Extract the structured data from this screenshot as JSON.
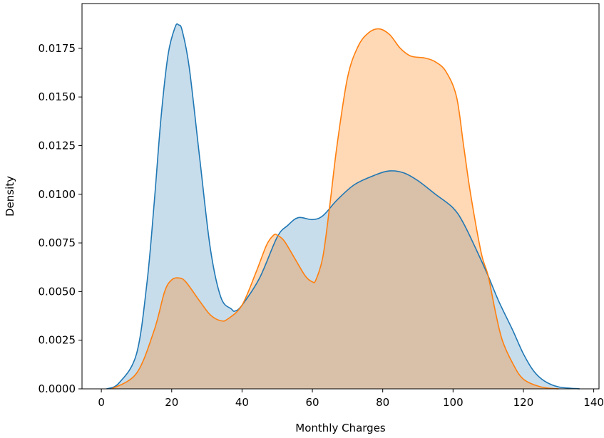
{
  "chart_data": {
    "type": "area",
    "xlabel": "Monthly Charges",
    "ylabel": "Density",
    "xlim": [
      -5.5,
      141.5
    ],
    "ylim": [
      0,
      0.0198
    ],
    "xticks": [
      0,
      20,
      40,
      60,
      80,
      100,
      120,
      140
    ],
    "yticks": [
      0.0,
      0.0025,
      0.005,
      0.0075,
      0.01,
      0.0125,
      0.015,
      0.0175
    ],
    "ytick_labels": [
      "0.0000",
      "0.0025",
      "0.0050",
      "0.0075",
      "0.0100",
      "0.0125",
      "0.0150",
      "0.0175"
    ],
    "grid": false,
    "series": [
      {
        "color": "#1f77b4",
        "fill_opacity": 0.25,
        "points": [
          [
            1.5,
            0.0
          ],
          [
            5,
            0.0003
          ],
          [
            10,
            0.0018
          ],
          [
            13,
            0.0055
          ],
          [
            15,
            0.0095
          ],
          [
            17,
            0.014
          ],
          [
            19,
            0.0172
          ],
          [
            21,
            0.0186
          ],
          [
            22,
            0.0187
          ],
          [
            23,
            0.0184
          ],
          [
            25,
            0.0165
          ],
          [
            28,
            0.0118
          ],
          [
            31,
            0.0072
          ],
          [
            34,
            0.0047
          ],
          [
            37,
            0.0041
          ],
          [
            38,
            0.004
          ],
          [
            40,
            0.0043
          ],
          [
            45,
            0.0057
          ],
          [
            50,
            0.0078
          ],
          [
            53,
            0.0084
          ],
          [
            56,
            0.0088
          ],
          [
            60,
            0.0087
          ],
          [
            63,
            0.0089
          ],
          [
            67,
            0.0097
          ],
          [
            72,
            0.0105
          ],
          [
            78,
            0.011
          ],
          [
            82,
            0.0112
          ],
          [
            86,
            0.0111
          ],
          [
            90,
            0.0107
          ],
          [
            95,
            0.01
          ],
          [
            100,
            0.0093
          ],
          [
            103,
            0.0085
          ],
          [
            107,
            0.007
          ],
          [
            110,
            0.0058
          ],
          [
            113,
            0.0045
          ],
          [
            117,
            0.003
          ],
          [
            120,
            0.0018
          ],
          [
            123,
            0.0009
          ],
          [
            126,
            0.0004
          ],
          [
            130,
            0.0001
          ],
          [
            136,
            0.0
          ]
        ]
      },
      {
        "color": "#ff7f0e",
        "fill_opacity": 0.3,
        "points": [
          [
            3,
            0.0
          ],
          [
            10,
            0.0008
          ],
          [
            15,
            0.003
          ],
          [
            18,
            0.005
          ],
          [
            20,
            0.0056
          ],
          [
            22,
            0.0057
          ],
          [
            24,
            0.0055
          ],
          [
            28,
            0.0045
          ],
          [
            31,
            0.0038
          ],
          [
            34,
            0.0035
          ],
          [
            36,
            0.0036
          ],
          [
            40,
            0.0043
          ],
          [
            44,
            0.006
          ],
          [
            47,
            0.0074
          ],
          [
            49,
            0.0079
          ],
          [
            50,
            0.0079
          ],
          [
            52,
            0.0076
          ],
          [
            55,
            0.0067
          ],
          [
            58,
            0.0058
          ],
          [
            60,
            0.0055
          ],
          [
            61,
            0.0056
          ],
          [
            63,
            0.0068
          ],
          [
            65,
            0.0095
          ],
          [
            67,
            0.0125
          ],
          [
            70,
            0.016
          ],
          [
            73,
            0.0176
          ],
          [
            76,
            0.0183
          ],
          [
            79,
            0.0185
          ],
          [
            82,
            0.0182
          ],
          [
            85,
            0.0175
          ],
          [
            88,
            0.0171
          ],
          [
            92,
            0.017
          ],
          [
            95,
            0.0168
          ],
          [
            98,
            0.0163
          ],
          [
            101,
            0.015
          ],
          [
            103,
            0.0125
          ],
          [
            105,
            0.01
          ],
          [
            108,
            0.007
          ],
          [
            110,
            0.0058
          ],
          [
            112,
            0.004
          ],
          [
            114,
            0.0025
          ],
          [
            117,
            0.0013
          ],
          [
            120,
            0.0005
          ],
          [
            125,
            0.0001
          ],
          [
            130,
            0.0
          ]
        ]
      }
    ]
  }
}
